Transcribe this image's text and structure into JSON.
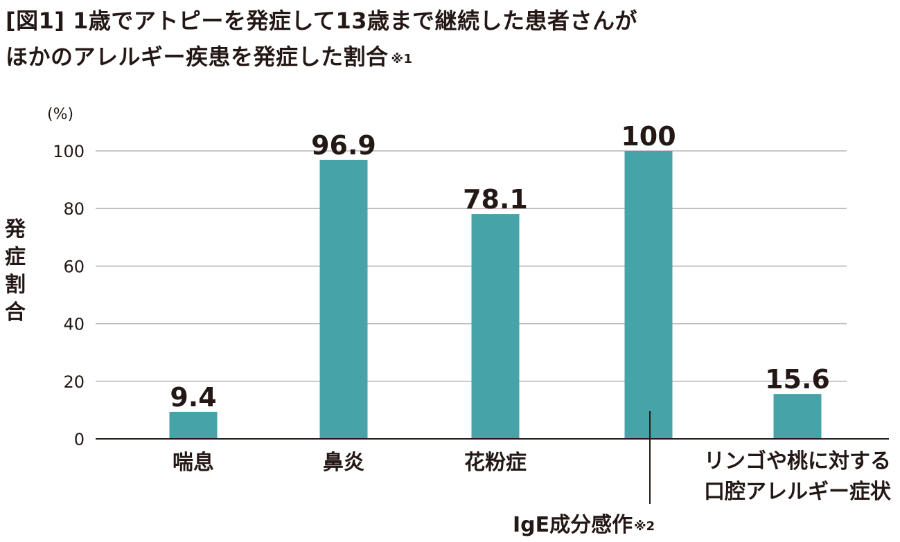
{
  "title": {
    "line1": "[図1] 1歳でアトピーを発症して13歳まで継続した患者さんが",
    "line2": "ほかのアレルギー疾患を発症した割合",
    "note": "※1"
  },
  "chart_data": {
    "type": "bar",
    "unit": "(%)",
    "ylabel": "発症割合",
    "ylim": [
      0,
      100
    ],
    "yticks": [
      0,
      20,
      40,
      60,
      80,
      100
    ],
    "grid": true,
    "categories": [
      {
        "label": "喘息",
        "note": ""
      },
      {
        "label": "鼻炎",
        "note": ""
      },
      {
        "label": "花粉症",
        "note": ""
      },
      {
        "label": "IgE成分感作",
        "note": "※2"
      },
      {
        "label": "リンゴや桃に対する\n口腔アレルギー症状",
        "note": ""
      }
    ],
    "values": [
      9.4,
      96.9,
      78.1,
      100,
      15.6
    ],
    "value_labels": [
      "9.4",
      "96.9",
      "78.1",
      "100",
      "15.6"
    ],
    "bar_color": "#46a3a8"
  }
}
